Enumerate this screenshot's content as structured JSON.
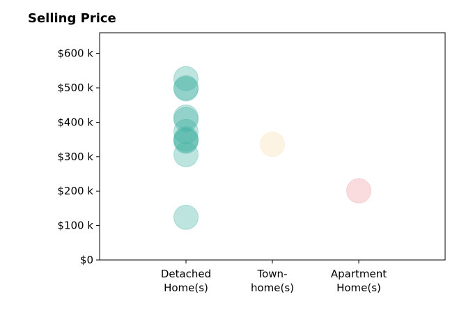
{
  "chart_data": {
    "type": "scatter",
    "title": "Selling Price",
    "categories": [
      {
        "lines": [
          "Detached",
          "Home(s)"
        ]
      },
      {
        "lines": [
          "Town-",
          "home(s)"
        ]
      },
      {
        "lines": [
          "Apartment",
          "Home(s)"
        ]
      }
    ],
    "y_ticks": [
      {
        "value": 0,
        "label": "$0"
      },
      {
        "value": 100,
        "label": "$100 k"
      },
      {
        "value": 200,
        "label": "$200 k"
      },
      {
        "value": 300,
        "label": "$300 k"
      },
      {
        "value": 400,
        "label": "$400 k"
      },
      {
        "value": 500,
        "label": "$500 k"
      },
      {
        "value": 600,
        "label": "$600 k"
      }
    ],
    "ylim": [
      0,
      660
    ],
    "y_unit": "thousands of dollars",
    "grid": false,
    "series": [
      {
        "category": 0,
        "color": "#45b3a4",
        "values": [
          527,
          497,
          500,
          415,
          408,
          373,
          352,
          348,
          345,
          306,
          124
        ]
      },
      {
        "category": 1,
        "color": "#f5deb0",
        "values": [
          336
        ]
      },
      {
        "category": 2,
        "color": "#f09aa2",
        "values": [
          201
        ]
      }
    ]
  }
}
